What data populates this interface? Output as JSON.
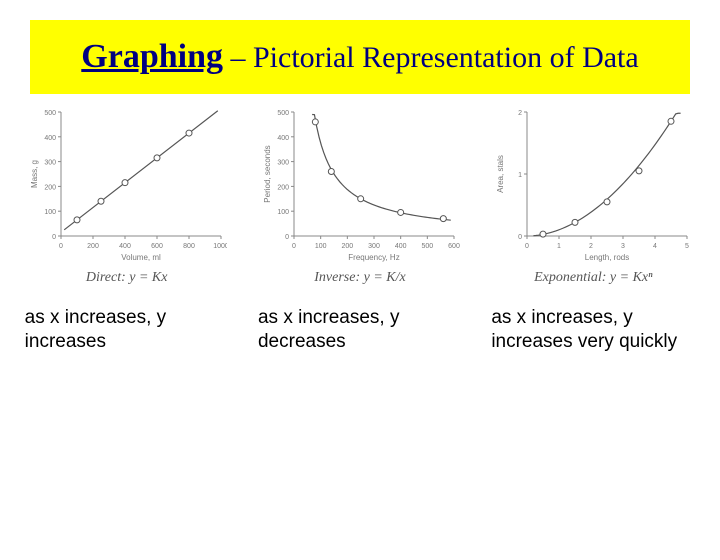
{
  "title": {
    "part1": "Graphing",
    "part2": " – Pictorial Representation of Data",
    "banner_bg": "#ffff00",
    "color": "#000080"
  },
  "charts": [
    {
      "type": "line",
      "relation": "Direct",
      "equation": "Direct: y = Kx",
      "caption": "as x increases, y increases",
      "xlabel": "Volume, ml",
      "ylabel": "Mass, g",
      "xlim": [
        0,
        1000
      ],
      "ylim": [
        0,
        500
      ],
      "xtick_step": 200,
      "ytick_step": 100,
      "xticks": [
        0,
        200,
        400,
        600,
        800,
        1000
      ],
      "yticks": [
        0,
        100,
        200,
        300,
        400,
        500
      ],
      "points": [
        {
          "x": 100,
          "y": 65
        },
        {
          "x": 250,
          "y": 140
        },
        {
          "x": 400,
          "y": 215
        },
        {
          "x": 600,
          "y": 315
        },
        {
          "x": 800,
          "y": 415
        }
      ],
      "line_color": "#555555",
      "marker_color": "#ffffff",
      "marker_stroke": "#555555",
      "marker_size": 3,
      "axis_color": "#888888",
      "label_fontsize": 8,
      "tick_fontsize": 7,
      "curve": "linear"
    },
    {
      "type": "line",
      "relation": "Inverse",
      "equation": "Inverse: y = K/x",
      "caption": "as x increases, y decreases",
      "xlabel": "Frequency, Hz",
      "ylabel": "Period, seconds",
      "xlim": [
        0,
        600
      ],
      "ylim": [
        0,
        500
      ],
      "xtick_step": 100,
      "ytick_step": 100,
      "xticks": [
        0,
        100,
        200,
        300,
        400,
        500,
        600
      ],
      "yticks": [
        0,
        100,
        200,
        300,
        400,
        500
      ],
      "points": [
        {
          "x": 80,
          "y": 460
        },
        {
          "x": 140,
          "y": 260
        },
        {
          "x": 250,
          "y": 150
        },
        {
          "x": 400,
          "y": 95
        },
        {
          "x": 560,
          "y": 70
        }
      ],
      "line_color": "#555555",
      "marker_color": "#ffffff",
      "marker_stroke": "#555555",
      "marker_size": 3,
      "axis_color": "#888888",
      "label_fontsize": 8,
      "tick_fontsize": 7,
      "curve": "inverse"
    },
    {
      "type": "line",
      "relation": "Exponential",
      "equation": "Exponential: y = Kxⁿ",
      "caption": "as x increases, y increases very quickly",
      "xlabel": "Length, rods",
      "ylabel": "Area, stals",
      "xlim": [
        0,
        5
      ],
      "ylim": [
        0,
        2
      ],
      "xtick_step": 1,
      "ytick_step": 1,
      "xticks": [
        0,
        1,
        2,
        3,
        4,
        5
      ],
      "yticks": [
        0,
        1,
        2
      ],
      "points": [
        {
          "x": 0.5,
          "y": 0.03
        },
        {
          "x": 1.5,
          "y": 0.22
        },
        {
          "x": 2.5,
          "y": 0.55
        },
        {
          "x": 3.5,
          "y": 1.05
        },
        {
          "x": 4.5,
          "y": 1.85
        }
      ],
      "line_color": "#555555",
      "marker_color": "#ffffff",
      "marker_stroke": "#555555",
      "marker_size": 3,
      "axis_color": "#888888",
      "label_fontsize": 8,
      "tick_fontsize": 7,
      "curve": "power"
    }
  ]
}
